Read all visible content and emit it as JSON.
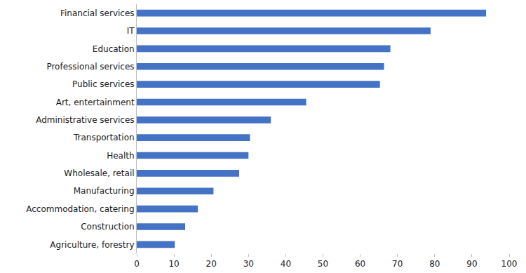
{
  "chart_data": {
    "type": "bar",
    "orientation": "horizontal",
    "categories": [
      "Financial services",
      "IT",
      "Education",
      "Professional services",
      "Public services",
      "Art, entertainment",
      "Administrative services",
      "Transportation",
      "Health",
      "Wholesale, retail",
      "Manufacturing",
      "Accommodation, catering",
      "Construction",
      "Agriculture, forestry"
    ],
    "values": [
      93.8,
      78.9,
      68.1,
      66.4,
      65.3,
      45.5,
      36,
      30.4,
      30,
      27.5,
      20.6,
      16.4,
      13,
      10.2
    ],
    "color": "#4472c4",
    "xlim": [
      0,
      100
    ],
    "xticks": [
      0,
      10,
      20,
      30,
      40,
      50,
      60,
      70,
      80,
      90,
      100
    ],
    "grid": false
  }
}
